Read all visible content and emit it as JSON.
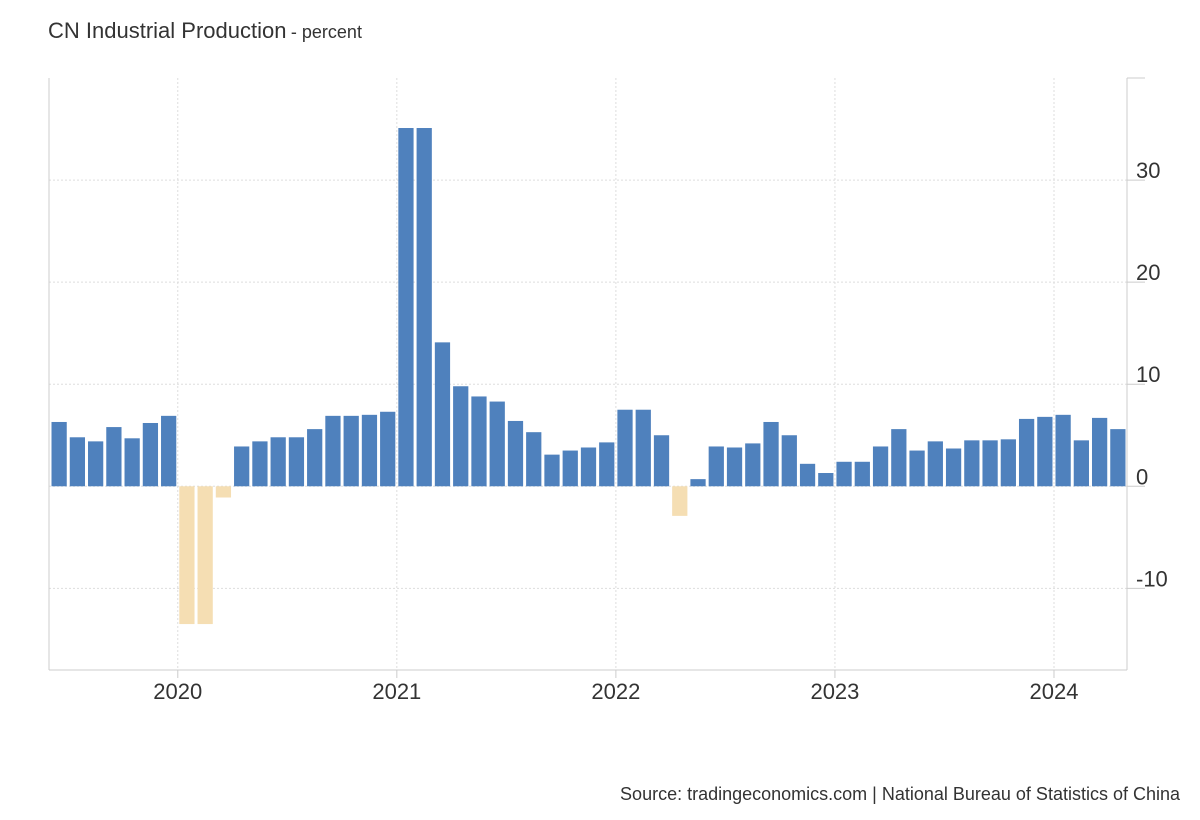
{
  "header": {
    "title": "CN Industrial Production",
    "subtitle": "- percent"
  },
  "footer": {
    "source": "Source: tradingeconomics.com | National Bureau of Statistics of China"
  },
  "colors": {
    "positive": "#4f81bd",
    "negative": "#f5deb3",
    "grid": "#dddddd",
    "axis": "#cccccc",
    "text": "#333333"
  },
  "chart_data": {
    "type": "bar",
    "title": "CN Industrial Production",
    "ylabel": "percent",
    "ylim": [
      -18,
      40
    ],
    "yticks": [
      -10,
      0,
      10,
      20,
      30
    ],
    "xticks": [
      "2020",
      "2021",
      "2022",
      "2023",
      "2024"
    ],
    "grid": true,
    "x": [
      "2019-06",
      "2019-07",
      "2019-08",
      "2019-09",
      "2019-10",
      "2019-11",
      "2019-12",
      "2020-01",
      "2020-02",
      "2020-03",
      "2020-04",
      "2020-05",
      "2020-06",
      "2020-07",
      "2020-08",
      "2020-09",
      "2020-10",
      "2020-11",
      "2020-12",
      "2021-01",
      "2021-02",
      "2021-03",
      "2021-04",
      "2021-05",
      "2021-06",
      "2021-07",
      "2021-08",
      "2021-09",
      "2021-10",
      "2021-11",
      "2021-12",
      "2022-01",
      "2022-02",
      "2022-03",
      "2022-04",
      "2022-05",
      "2022-06",
      "2022-07",
      "2022-08",
      "2022-09",
      "2022-10",
      "2022-11",
      "2022-12",
      "2023-01",
      "2023-02",
      "2023-03",
      "2023-04",
      "2023-05",
      "2023-06",
      "2023-07",
      "2023-08",
      "2023-09",
      "2023-10",
      "2023-11",
      "2023-12",
      "2024-01",
      "2024-02",
      "2024-03",
      "2024-04"
    ],
    "values": [
      6.3,
      4.8,
      4.4,
      5.8,
      4.7,
      6.2,
      6.9,
      -13.5,
      -13.5,
      -1.1,
      3.9,
      4.4,
      4.8,
      4.8,
      5.6,
      6.9,
      6.9,
      7.0,
      7.3,
      35.1,
      35.1,
      14.1,
      9.8,
      8.8,
      8.3,
      6.4,
      5.3,
      3.1,
      3.5,
      3.8,
      4.3,
      7.5,
      7.5,
      5.0,
      -2.9,
      0.7,
      3.9,
      3.8,
      4.2,
      6.3,
      5.0,
      2.2,
      1.3,
      2.4,
      2.4,
      3.9,
      5.6,
      3.5,
      4.4,
      3.7,
      4.5,
      4.5,
      4.6,
      6.6,
      6.8,
      7.0,
      4.5,
      6.7,
      5.6
    ]
  }
}
